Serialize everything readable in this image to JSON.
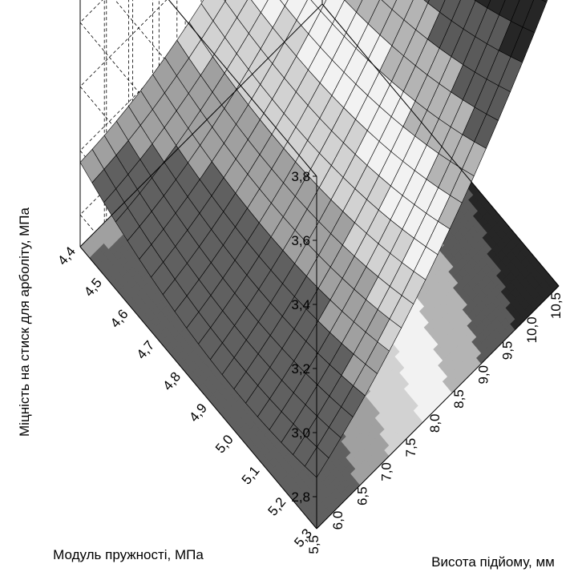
{
  "chart_data": {
    "type": "surface3d",
    "title": "",
    "xlabel": "Модуль пружності, МПа",
    "ylabel": "Висота підйому, мм",
    "zlabel": "Міцність на стиск для арболіту, МПа",
    "x_ticks": [
      "4,4",
      "4,5",
      "4,6",
      "4,7",
      "4,8",
      "4,9",
      "5,0",
      "5,1",
      "5,2",
      "5,3"
    ],
    "y_ticks": [
      "5,5",
      "6,0",
      "6,5",
      "7,0",
      "7,5",
      "8,0",
      "8,5",
      "9,0",
      "9,5",
      "10,0",
      "10,5"
    ],
    "z_ticks": [
      "2,8",
      "3,0",
      "3,2",
      "3,4",
      "3,6",
      "3,8"
    ],
    "xlim": [
      4.4,
      5.3
    ],
    "ylim": [
      5.5,
      10.5
    ],
    "zlim": [
      2.7,
      3.8
    ],
    "grid": true,
    "contour_projection": true,
    "surface_samples": [
      {
        "x": 4.4,
        "y": 5.5,
        "z": 2.93
      },
      {
        "x": 4.4,
        "y": 8.0,
        "z": 3.15
      },
      {
        "x": 4.4,
        "y": 10.5,
        "z": 3.35
      },
      {
        "x": 4.85,
        "y": 5.5,
        "z": 2.85
      },
      {
        "x": 4.85,
        "y": 8.0,
        "z": 3.02
      },
      {
        "x": 4.85,
        "y": 10.5,
        "z": 3.48
      },
      {
        "x": 5.3,
        "y": 5.5,
        "z": 2.88
      },
      {
        "x": 5.3,
        "y": 8.0,
        "z": 3.14
      },
      {
        "x": 5.3,
        "y": 10.5,
        "z": 3.7
      }
    ]
  }
}
